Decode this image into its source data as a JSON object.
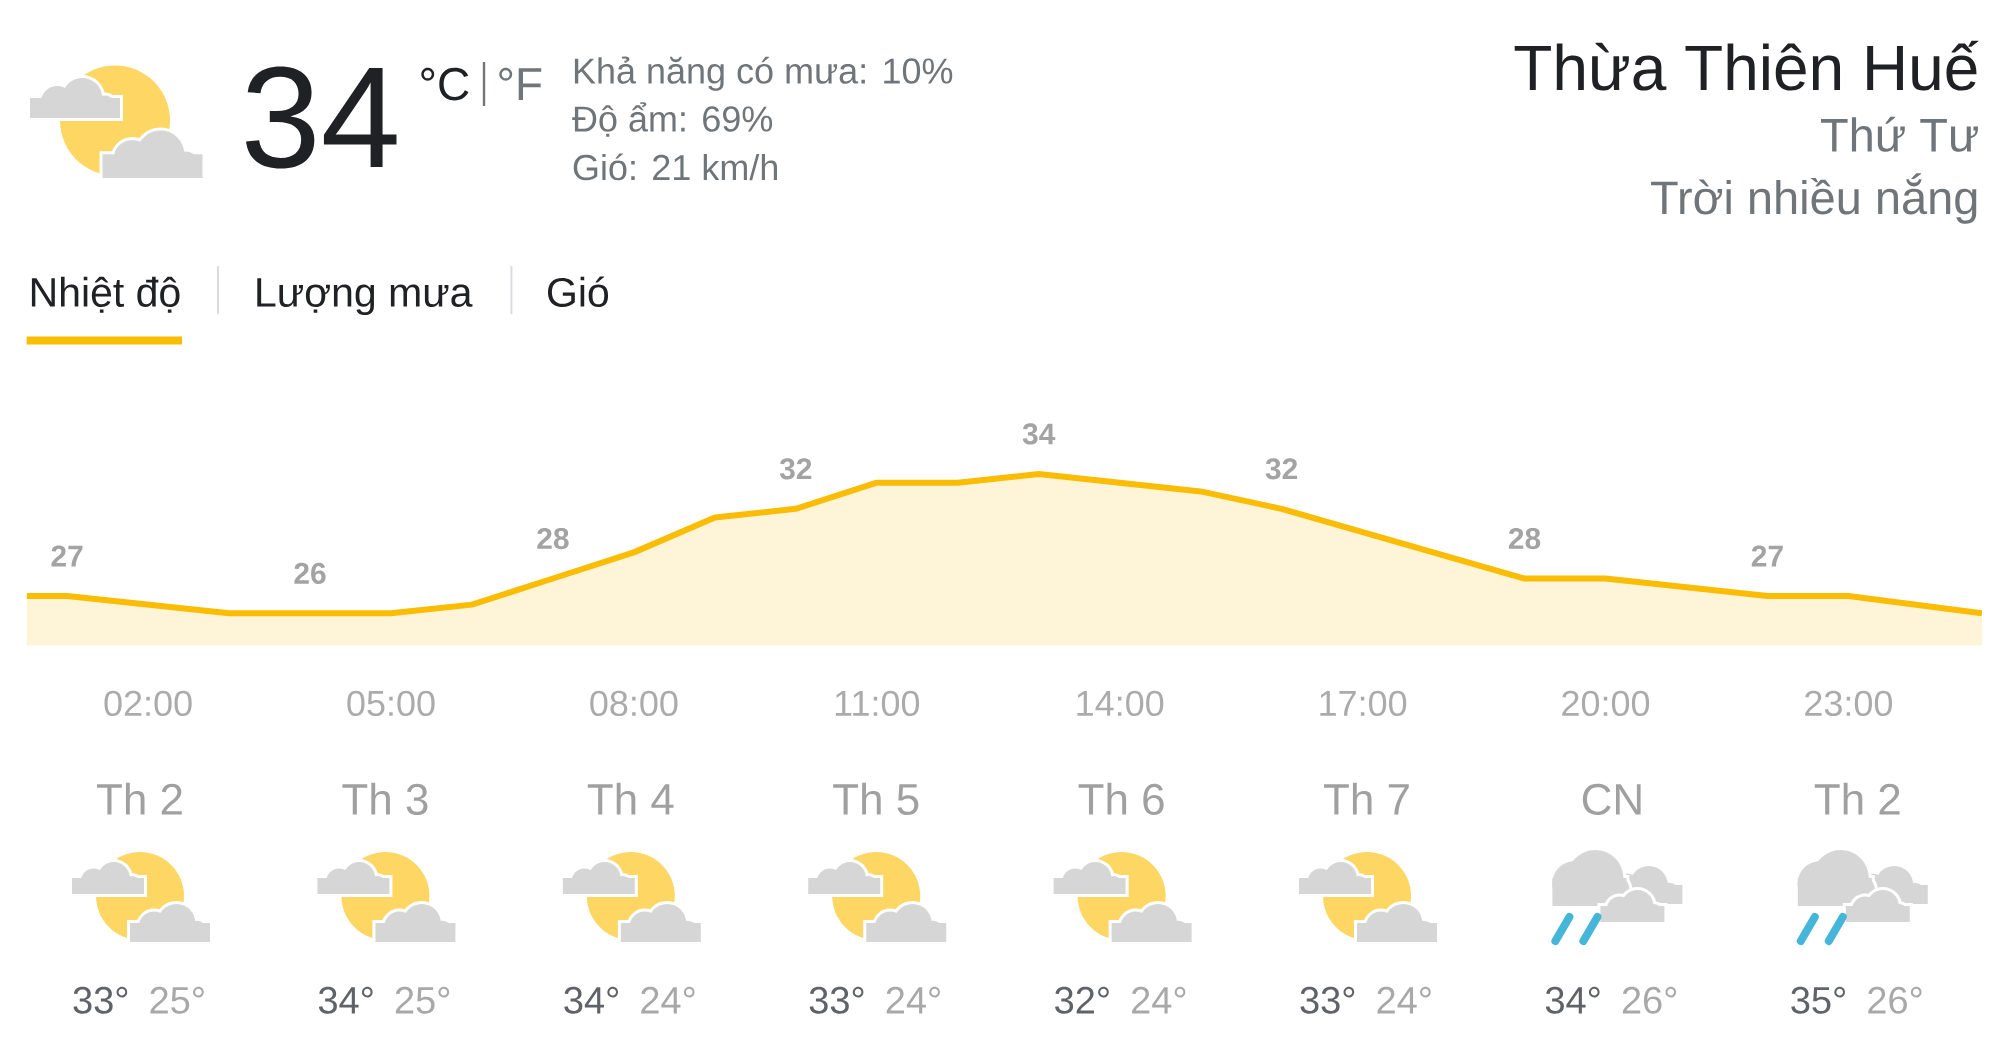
{
  "chart_data": [
    {
      "type": "other",
      "title": "Thừa Thiên Huế",
      "subtitle": "Thứ Tư",
      "annotations": [
        "Trời nhiều nắng",
        "34",
        "°C",
        "°F",
        "Khả năng có mưa: 10%",
        "Độ ẩm: 69%",
        "Gió: 21 km/h",
        "Nhiệt độ",
        "Lượng mưa",
        "Gió"
      ]
    },
    {
      "type": "area",
      "x": [
        0.5,
        1,
        3,
        4,
        5,
        6,
        7,
        8,
        9,
        10,
        11,
        12,
        13,
        15,
        16,
        19,
        20,
        22,
        23,
        24.65
      ],
      "values": [
        27,
        27,
        26,
        26,
        26,
        26.5,
        28,
        29.5,
        31.5,
        32,
        33.5,
        33.5,
        34,
        33,
        32,
        28,
        28,
        27,
        27,
        26
      ],
      "value_labels": [
        null,
        "27",
        null,
        "26",
        null,
        null,
        "28",
        null,
        null,
        "32",
        null,
        null,
        "34",
        null,
        "32",
        "28",
        null,
        "27",
        null,
        null
      ],
      "color": "#fbbc04",
      "xlim": [
        0.5,
        24.65
      ],
      "xticks": [
        {
          "value": 2,
          "label": "02:00"
        },
        {
          "value": 5,
          "label": "05:00"
        },
        {
          "value": 8,
          "label": "08:00"
        },
        {
          "value": 11,
          "label": "11:00"
        },
        {
          "value": 14,
          "label": "14:00"
        },
        {
          "value": 17,
          "label": "17:00"
        },
        {
          "value": 20,
          "label": "20:00"
        },
        {
          "value": 23,
          "label": "23:00"
        }
      ],
      "tick_labels": "x"
    },
    {
      "type": "other",
      "categories": [
        "Th 2",
        "Th 3",
        "Th 4",
        "Th 5",
        "Th 6",
        "Th 7",
        "CN",
        "Th 2"
      ],
      "series": [
        {
          "values": [
            33,
            34,
            34,
            33,
            32,
            33,
            34,
            35
          ],
          "value_labels": [
            "33°",
            "34°",
            "34°",
            "33°",
            "32°",
            "33°",
            "34°",
            "35°"
          ],
          "color": "#5f6368"
        },
        {
          "values": [
            25,
            25,
            24,
            24,
            24,
            24,
            26,
            26
          ],
          "value_labels": [
            "25°",
            "25°",
            "24°",
            "24°",
            "24°",
            "24°",
            "26°",
            "26°"
          ],
          "color": "#a8a8a8"
        }
      ]
    }
  ]
}
